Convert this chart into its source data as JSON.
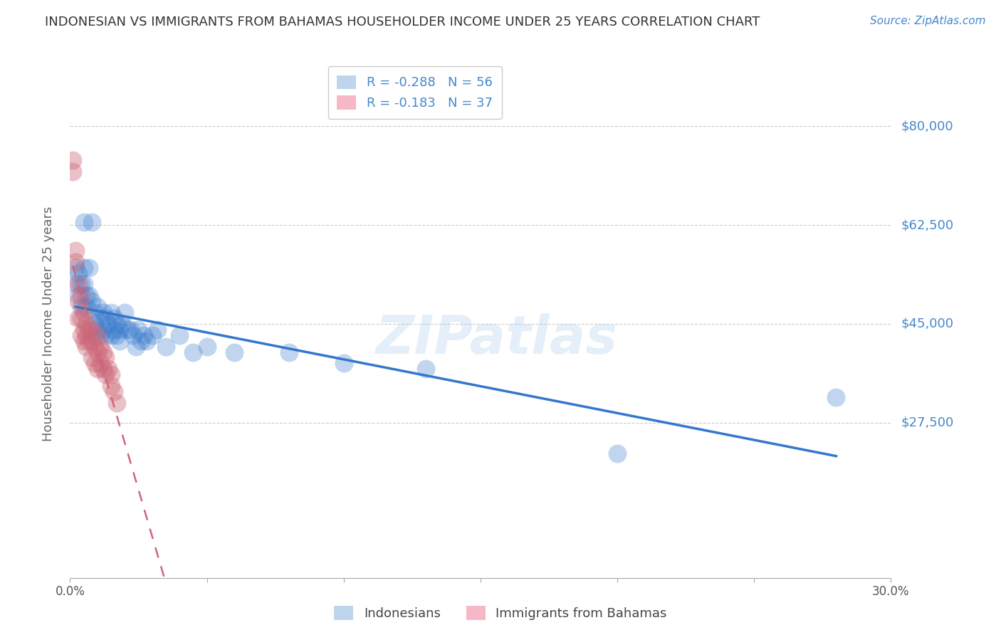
{
  "title": "INDONESIAN VS IMMIGRANTS FROM BAHAMAS HOUSEHOLDER INCOME UNDER 25 YEARS CORRELATION CHART",
  "source": "Source: ZipAtlas.com",
  "ylabel": "Householder Income Under 25 years",
  "xlim": [
    0.0,
    0.3
  ],
  "ylim": [
    0,
    90000
  ],
  "yticks": [
    0,
    27500,
    45000,
    62500,
    80000
  ],
  "ytick_labels": [
    "",
    "$27,500",
    "$45,000",
    "$62,500",
    "$80,000"
  ],
  "watermark": "ZIPatlas",
  "legend_entries": [
    {
      "label": "R = -0.288   N = 56",
      "color": "#a8c8e8"
    },
    {
      "label": "R = -0.183   N = 37",
      "color": "#f4a0b5"
    }
  ],
  "legend_bottom": [
    {
      "label": "Indonesians",
      "color": "#a8c8e8"
    },
    {
      "label": "Immigrants from Bahamas",
      "color": "#f4a0b5"
    }
  ],
  "indonesian_x": [
    0.002,
    0.002,
    0.003,
    0.003,
    0.004,
    0.004,
    0.005,
    0.005,
    0.005,
    0.006,
    0.006,
    0.007,
    0.007,
    0.008,
    0.008,
    0.009,
    0.009,
    0.01,
    0.01,
    0.011,
    0.011,
    0.012,
    0.012,
    0.013,
    0.013,
    0.014,
    0.015,
    0.015,
    0.016,
    0.016,
    0.017,
    0.017,
    0.018,
    0.018,
    0.019,
    0.02,
    0.021,
    0.022,
    0.023,
    0.024,
    0.025,
    0.026,
    0.027,
    0.028,
    0.03,
    0.032,
    0.035,
    0.04,
    0.045,
    0.05,
    0.06,
    0.08,
    0.1,
    0.13,
    0.2,
    0.28
  ],
  "indonesian_y": [
    55000,
    52000,
    54000,
    50000,
    52000,
    48000,
    63000,
    55000,
    52000,
    50000,
    48000,
    55000,
    50000,
    63000,
    49000,
    47000,
    45000,
    48000,
    44000,
    46000,
    43000,
    47000,
    44000,
    46000,
    43000,
    45000,
    47000,
    43000,
    46000,
    44000,
    45000,
    43000,
    44000,
    42000,
    45000,
    47000,
    44000,
    44000,
    43000,
    41000,
    44000,
    42000,
    43000,
    42000,
    43000,
    44000,
    41000,
    43000,
    40000,
    41000,
    40000,
    40000,
    38000,
    37000,
    22000,
    32000
  ],
  "bahamas_x": [
    0.001,
    0.001,
    0.002,
    0.002,
    0.003,
    0.003,
    0.003,
    0.004,
    0.004,
    0.004,
    0.005,
    0.005,
    0.005,
    0.006,
    0.006,
    0.006,
    0.007,
    0.007,
    0.008,
    0.008,
    0.008,
    0.009,
    0.009,
    0.01,
    0.01,
    0.01,
    0.011,
    0.011,
    0.012,
    0.012,
    0.013,
    0.013,
    0.014,
    0.015,
    0.015,
    0.016,
    0.017
  ],
  "bahamas_y": [
    74000,
    72000,
    58000,
    56000,
    52000,
    49000,
    46000,
    50000,
    46000,
    43000,
    47000,
    44000,
    42000,
    45000,
    43000,
    41000,
    44000,
    42000,
    44000,
    42000,
    39000,
    41000,
    38000,
    43000,
    40000,
    37000,
    41000,
    38000,
    40000,
    37000,
    39000,
    36000,
    37000,
    36000,
    34000,
    33000,
    31000
  ],
  "trendline_indonesian_color": "#3377cc",
  "trendline_bahamas_color": "#cc6677",
  "background_color": "#ffffff",
  "grid_color": "#cccccc",
  "title_color": "#333333",
  "ylabel_color": "#666666",
  "ytick_color": "#4488cc",
  "xtick_color": "#555555",
  "source_color": "#4488cc"
}
